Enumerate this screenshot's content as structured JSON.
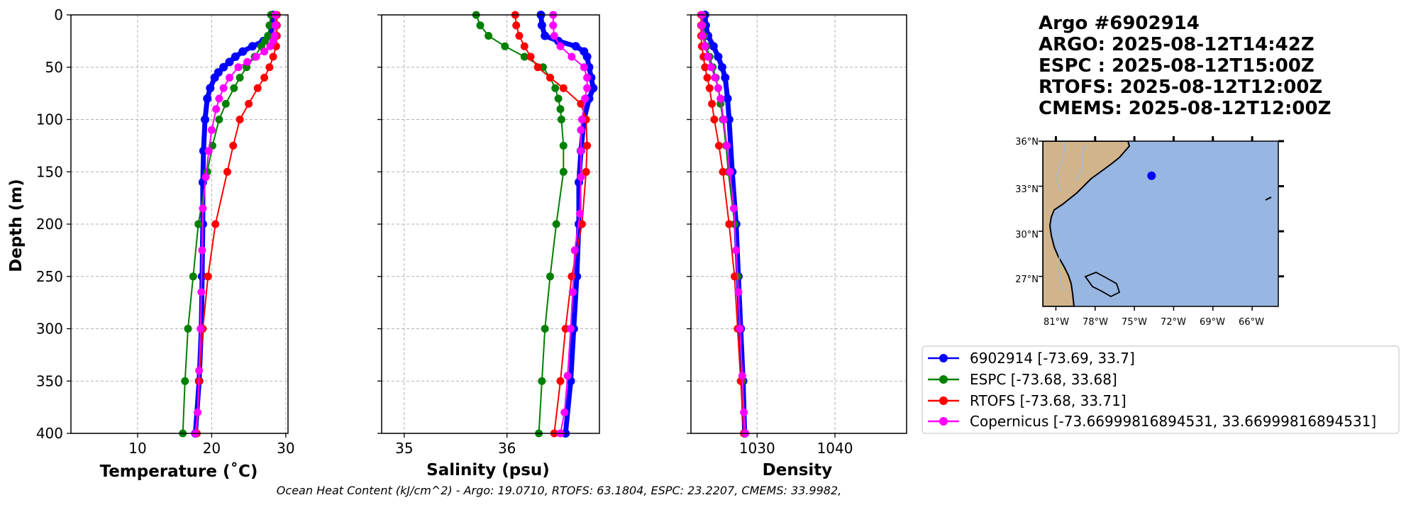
{
  "title_lines": [
    "Argo #6902914",
    "ARGO: 2025-08-12T14:42Z",
    "ESPC : 2025-08-12T15:00Z",
    "RTOFS: 2025-08-12T12:00Z",
    "CMEMS: 2025-08-12T12:00Z"
  ],
  "caption": "Ocean Heat Content (kJ/cm^2) - Argo: 19.0710,  RTOFS: 63.1804,  ESPC: 23.2207,  CMEMS: 33.9982,",
  "colors": {
    "argo": "#0000ff",
    "espc": "#008000",
    "rtofs": "#ff0000",
    "cmems": "#ff00ff",
    "land": "#d2b48c",
    "ocean": "#97b6e1"
  },
  "legend": [
    {
      "label": "6902914 [-73.69, 33.7]",
      "color": "#0000ff"
    },
    {
      "label": "ESPC [-73.68, 33.68]",
      "color": "#008000"
    },
    {
      "label": "RTOFS [-73.68, 33.71]",
      "color": "#ff0000"
    },
    {
      "label": "Copernicus [-73.66999816894531, 33.66999816894531]",
      "color": "#ff00ff"
    }
  ],
  "map": {
    "lat_ticks": [
      "36°N",
      "33°N",
      "30°N",
      "27°N"
    ],
    "lon_ticks": [
      "81°W",
      "78°W",
      "75°W",
      "72°W",
      "69°W",
      "66°W"
    ],
    "float_position": {
      "lon": -73.69,
      "lat": 33.7
    }
  },
  "chart_data": [
    {
      "type": "line",
      "title": "",
      "xlabel": "Temperature (˚C)",
      "ylabel": "Depth (m)",
      "xlim": [
        1,
        30.3
      ],
      "ylim": [
        400,
        0
      ],
      "xticks": [
        10,
        20,
        30
      ],
      "yticks": [
        0,
        50,
        100,
        150,
        200,
        250,
        300,
        350,
        400
      ],
      "grid": true,
      "series": [
        {
          "name": "6902914",
          "depth": [
            0,
            10,
            20,
            25,
            30,
            35,
            40,
            45,
            50,
            55,
            60,
            70,
            80,
            100,
            130,
            160,
            200,
            250,
            300,
            350,
            400
          ],
          "values": [
            28.3,
            28.2,
            27.9,
            27.0,
            25.5,
            24.2,
            23.2,
            22.4,
            21.6,
            20.9,
            20.4,
            19.8,
            19.4,
            19.1,
            18.9,
            18.8,
            18.8,
            18.7,
            18.6,
            18.3,
            17.8
          ]
        },
        {
          "name": "ESPC",
          "depth": [
            0,
            10,
            20,
            25,
            30,
            40,
            50,
            60,
            70,
            85,
            100,
            125,
            150,
            200,
            250,
            300,
            350,
            400
          ],
          "values": [
            28.0,
            27.8,
            27.6,
            27.2,
            26.7,
            25.8,
            24.7,
            23.8,
            23.0,
            21.9,
            21.0,
            20.1,
            19.4,
            18.2,
            17.5,
            16.8,
            16.4,
            16.1
          ]
        },
        {
          "name": "RTOFS",
          "depth": [
            0,
            10,
            20,
            30,
            40,
            50,
            60,
            70,
            85,
            100,
            125,
            150,
            200,
            250,
            300,
            350,
            400
          ],
          "values": [
            28.8,
            28.8,
            28.8,
            28.7,
            28.3,
            27.8,
            27.1,
            26.2,
            25.0,
            23.8,
            22.9,
            22.1,
            20.5,
            19.5,
            18.8,
            18.3,
            18.0
          ]
        },
        {
          "name": "Copernicus",
          "depth": [
            0,
            10,
            20,
            25,
            30,
            35,
            40,
            45,
            50,
            60,
            70,
            80,
            90,
            110,
            130,
            155,
            185,
            225,
            265,
            300,
            340,
            380,
            400
          ],
          "values": [
            28.6,
            28.6,
            28.5,
            28.3,
            27.9,
            27.1,
            26.0,
            24.8,
            23.6,
            22.4,
            21.6,
            21.0,
            20.6,
            20.0,
            19.6,
            19.2,
            18.8,
            18.7,
            18.6,
            18.5,
            18.3,
            18.1,
            17.8
          ]
        }
      ]
    },
    {
      "type": "line",
      "title": "",
      "xlabel": "Salinity (psu)",
      "ylabel": "",
      "xlim": [
        34.78,
        36.9
      ],
      "ylim": [
        400,
        0
      ],
      "xticks": [
        35,
        36
      ],
      "yticks": [
        0,
        50,
        100,
        150,
        200,
        250,
        300,
        350,
        400
      ],
      "grid": true,
      "series": [
        {
          "name": "6902914",
          "depth": [
            0,
            10,
            20,
            25,
            30,
            35,
            40,
            50,
            60,
            70,
            80,
            100,
            130,
            160,
            200,
            250,
            300,
            350,
            400
          ],
          "values": [
            36.33,
            36.34,
            36.37,
            36.5,
            36.67,
            36.75,
            36.78,
            36.8,
            36.82,
            36.84,
            36.8,
            36.75,
            36.72,
            36.7,
            36.7,
            36.68,
            36.65,
            36.62,
            36.57
          ]
        },
        {
          "name": "ESPC",
          "depth": [
            0,
            10,
            20,
            30,
            40,
            50,
            60,
            70,
            80,
            90,
            100,
            125,
            150,
            200,
            250,
            300,
            350,
            400
          ],
          "values": [
            35.7,
            35.74,
            35.82,
            35.98,
            36.17,
            36.35,
            36.42,
            36.47,
            36.5,
            36.52,
            36.53,
            36.55,
            36.55,
            36.48,
            36.42,
            36.37,
            36.34,
            36.31
          ]
        },
        {
          "name": "RTOFS",
          "depth": [
            0,
            10,
            20,
            30,
            40,
            50,
            60,
            70,
            85,
            100,
            125,
            150,
            200,
            250,
            300,
            350,
            400
          ],
          "values": [
            36.08,
            36.09,
            36.12,
            36.17,
            36.23,
            36.3,
            36.42,
            36.55,
            36.72,
            36.77,
            36.78,
            36.77,
            36.73,
            36.63,
            36.57,
            36.52,
            36.46
          ]
        },
        {
          "name": "Copernicus",
          "depth": [
            0,
            10,
            20,
            30,
            40,
            50,
            60,
            70,
            80,
            100,
            110,
            130,
            155,
            190,
            225,
            265,
            300,
            345,
            380,
            400
          ],
          "values": [
            36.45,
            36.45,
            36.46,
            36.52,
            36.63,
            36.75,
            36.78,
            36.78,
            36.76,
            36.73,
            36.72,
            36.72,
            36.72,
            36.71,
            36.66,
            36.64,
            36.62,
            36.59,
            36.56,
            36.52
          ]
        }
      ]
    },
    {
      "type": "line",
      "title": "",
      "xlabel": "Density",
      "ylabel": "",
      "xlim": [
        1021.5,
        1049.2
      ],
      "ylim": [
        400,
        0
      ],
      "xticks": [
        1030,
        1040
      ],
      "yticks": [
        0,
        50,
        100,
        150,
        200,
        250,
        300,
        350,
        400
      ],
      "grid": true,
      "series": [
        {
          "name": "6902914",
          "depth": [
            0,
            10,
            20,
            30,
            40,
            50,
            60,
            80,
            100,
            150,
            200,
            250,
            300,
            350,
            400
          ],
          "values": [
            1023.3,
            1023.4,
            1023.7,
            1024.4,
            1025.0,
            1025.5,
            1025.9,
            1026.2,
            1026.4,
            1026.8,
            1027.3,
            1027.6,
            1027.9,
            1028.2,
            1028.4
          ]
        },
        {
          "name": "ESPC",
          "depth": [
            0,
            10,
            20,
            30,
            40,
            50,
            60,
            70,
            85,
            100,
            125,
            150,
            200,
            250,
            300,
            350,
            400
          ],
          "values": [
            1023.0,
            1023.0,
            1023.2,
            1023.5,
            1023.9,
            1024.3,
            1024.7,
            1025.0,
            1025.3,
            1025.6,
            1026.0,
            1026.3,
            1027.1,
            1027.5,
            1027.8,
            1028.1,
            1028.4
          ]
        },
        {
          "name": "RTOFS",
          "depth": [
            0,
            10,
            20,
            30,
            40,
            50,
            60,
            70,
            85,
            100,
            125,
            150,
            200,
            250,
            300,
            350,
            400
          ],
          "values": [
            1022.8,
            1022.8,
            1022.8,
            1022.9,
            1023.1,
            1023.3,
            1023.6,
            1023.9,
            1024.2,
            1024.5,
            1025.1,
            1025.6,
            1026.4,
            1027.1,
            1027.5,
            1027.9,
            1028.3
          ]
        },
        {
          "name": "Copernicus",
          "depth": [
            0,
            10,
            20,
            30,
            40,
            50,
            60,
            70,
            80,
            100,
            125,
            150,
            185,
            225,
            265,
            300,
            345,
            380,
            400
          ],
          "values": [
            1022.9,
            1022.9,
            1023.0,
            1023.3,
            1023.7,
            1024.1,
            1024.6,
            1025.0,
            1025.3,
            1025.7,
            1026.1,
            1026.5,
            1027.0,
            1027.3,
            1027.6,
            1027.8,
            1028.1,
            1028.3,
            1028.5
          ]
        }
      ]
    }
  ]
}
